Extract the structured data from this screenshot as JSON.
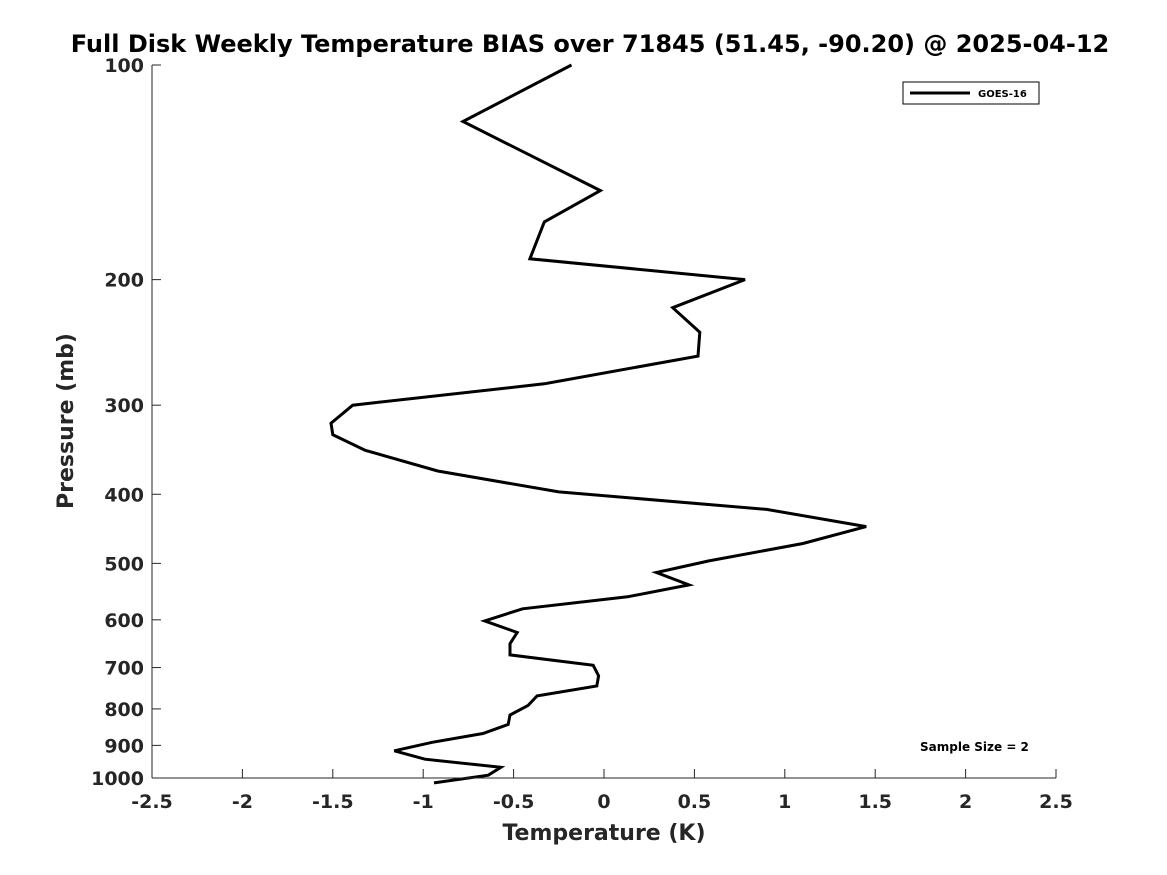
{
  "chart_data": {
    "type": "line",
    "title": "Full Disk Weekly Temperature BIAS over 71845 (51.45, -90.20) @ 2025-04-12",
    "xlabel": "Temperature (K)",
    "ylabel": "Pressure (mb)",
    "xlim": [
      -2.5,
      2.5
    ],
    "ylim": [
      100,
      1000
    ],
    "yscale": "log",
    "y_reversed": true,
    "grid": false,
    "legend_position": "top-right",
    "x_ticks": [
      -2.5,
      -2,
      -1.5,
      -1,
      -0.5,
      0,
      0.5,
      1,
      1.5,
      2,
      2.5
    ],
    "x_tick_labels": [
      "-2.5",
      "-2",
      "-1.5",
      "-1",
      "-0.5",
      "0",
      "0.5",
      "1",
      "1.5",
      "2",
      "2.5"
    ],
    "y_ticks": [
      100,
      200,
      300,
      400,
      500,
      600,
      700,
      800,
      900,
      1000
    ],
    "y_tick_labels": [
      "100",
      "200",
      "300",
      "400",
      "500",
      "600",
      "700",
      "800",
      "900",
      "1000"
    ],
    "series": [
      {
        "name": "GOES-16",
        "color": "#000000",
        "points": [
          [
            -0.18,
            100
          ],
          [
            -0.78,
            120
          ],
          [
            -0.02,
            150
          ],
          [
            -0.33,
            166
          ],
          [
            -0.41,
            187
          ],
          [
            0.78,
            200
          ],
          [
            0.38,
            219
          ],
          [
            0.53,
            237
          ],
          [
            0.52,
            256
          ],
          [
            -0.33,
            280
          ],
          [
            -1.39,
            300
          ],
          [
            -1.51,
            318
          ],
          [
            -1.5,
            330
          ],
          [
            -1.32,
            347
          ],
          [
            -0.92,
            371
          ],
          [
            -0.25,
            397
          ],
          [
            0.9,
            420
          ],
          [
            1.45,
            444
          ],
          [
            1.1,
            469
          ],
          [
            0.58,
            496
          ],
          [
            0.29,
            515
          ],
          [
            0.47,
            536
          ],
          [
            0.13,
            557
          ],
          [
            -0.45,
            579
          ],
          [
            -0.66,
            602
          ],
          [
            -0.48,
            625
          ],
          [
            -0.52,
            648
          ],
          [
            -0.52,
            672
          ],
          [
            -0.06,
            695
          ],
          [
            -0.03,
            719
          ],
          [
            -0.04,
            743
          ],
          [
            -0.37,
            767
          ],
          [
            -0.42,
            791
          ],
          [
            -0.52,
            816
          ],
          [
            -0.53,
            841
          ],
          [
            -0.67,
            866
          ],
          [
            -0.95,
            891
          ],
          [
            -1.16,
            916
          ],
          [
            -0.99,
            941
          ],
          [
            -0.57,
            966
          ],
          [
            -0.64,
            991
          ],
          [
            -0.94,
            1016
          ]
        ]
      }
    ],
    "annotations": [
      "Sample Size = 2"
    ]
  }
}
